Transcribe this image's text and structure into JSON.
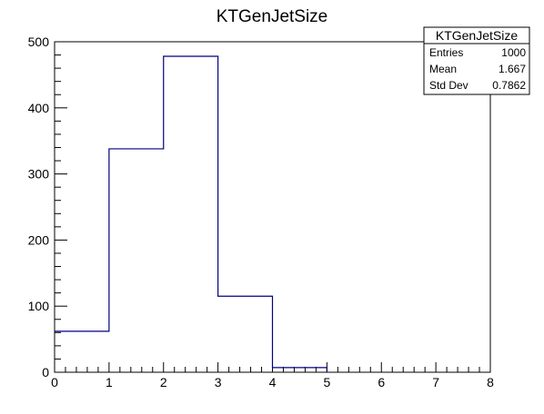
{
  "chart_data": {
    "type": "bar",
    "title": "KTGenJetSize",
    "xlabel": "",
    "ylabel": "",
    "xlim": [
      0,
      8
    ],
    "ylim": [
      0,
      500
    ],
    "x_ticks": [
      "0",
      "1",
      "2",
      "3",
      "4",
      "5",
      "6",
      "7",
      "8"
    ],
    "y_ticks": [
      "0",
      "100",
      "200",
      "300",
      "400",
      "500"
    ],
    "bin_edges": [
      0,
      1,
      2,
      3,
      4,
      5,
      6,
      7,
      8
    ],
    "values": [
      62,
      338,
      478,
      115,
      7,
      0,
      0,
      0
    ],
    "line_color": "#000080",
    "grid": false,
    "legend": "none"
  },
  "stats_box": {
    "title": "KTGenJetSize",
    "rows": [
      {
        "label": "Entries",
        "value": "1000"
      },
      {
        "label": "Mean",
        "value": "1.667"
      },
      {
        "label": "Std Dev",
        "value": "0.7862"
      }
    ]
  }
}
